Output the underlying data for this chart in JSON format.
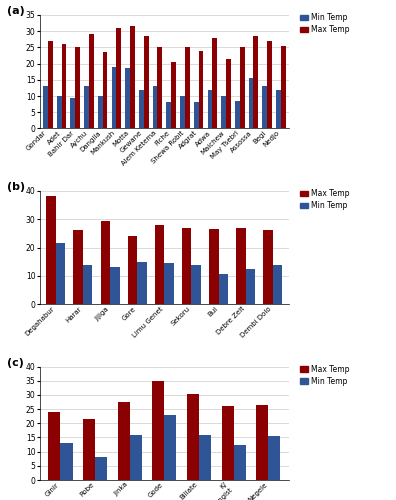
{
  "panel_a": {
    "label": "(a)",
    "categories": [
      "Gondar",
      "Adet",
      "Bahir Dar",
      "Aychu",
      "Dangila",
      "Mankush",
      "Motta",
      "Gewane",
      "Alem Ketema",
      "Fiche",
      "Shewa Robit",
      "Adgrat",
      "Adwa",
      "Maichew",
      "May Tsebri",
      "Assossa",
      "Begi",
      "Nedjo"
    ],
    "min_temp": [
      13,
      10,
      9.5,
      13,
      10,
      19,
      18.5,
      12,
      13,
      8,
      10,
      8,
      12,
      10,
      8.5,
      15.5,
      13,
      12
    ],
    "max_temp": [
      27,
      26,
      25,
      29,
      23.5,
      31,
      31.5,
      28.5,
      25,
      20.5,
      25,
      24,
      28,
      21.5,
      25,
      28.5,
      27,
      25.5
    ],
    "ylim": [
      0,
      35
    ],
    "yticks": [
      0,
      5,
      10,
      15,
      20,
      25,
      30,
      35
    ],
    "left_bar": "min",
    "legend_order": [
      "min",
      "max"
    ]
  },
  "panel_b": {
    "label": "(b)",
    "categories": [
      "Degahabur",
      "Harar",
      "Jijiga",
      "Gore",
      "Limu Genet",
      "Sekoru",
      "Bui",
      "Debre Zeit",
      "Dembi Dolo"
    ],
    "min_temp": [
      21.5,
      14,
      13,
      15,
      14.5,
      14,
      10.5,
      12.5,
      14
    ],
    "max_temp": [
      38,
      26,
      29.5,
      24,
      28,
      27,
      26.5,
      27,
      26
    ],
    "ylim": [
      0,
      40
    ],
    "yticks": [
      0,
      10,
      20,
      30,
      40
    ],
    "left_bar": "max",
    "legend_order": [
      "max",
      "min"
    ]
  },
  "panel_c": {
    "label": "(c)",
    "categories": [
      "Ginir",
      "Robe",
      "Jinka",
      "Gode",
      "Billate",
      "K/\nMengist",
      "Negele"
    ],
    "min_temp": [
      13,
      8,
      16,
      23,
      16,
      12.5,
      15.5
    ],
    "max_temp": [
      24,
      21.5,
      27.5,
      35,
      30.5,
      26,
      26.5
    ],
    "ylim": [
      0,
      40
    ],
    "yticks": [
      0,
      5,
      10,
      15,
      20,
      25,
      30,
      35,
      40
    ],
    "left_bar": "max",
    "legend_order": [
      "max",
      "min"
    ]
  },
  "color_max": "#8B0000",
  "color_min": "#2F5597",
  "bar_width": 0.35,
  "figure_width": 3.96,
  "figure_height": 5.0,
  "dpi": 100
}
